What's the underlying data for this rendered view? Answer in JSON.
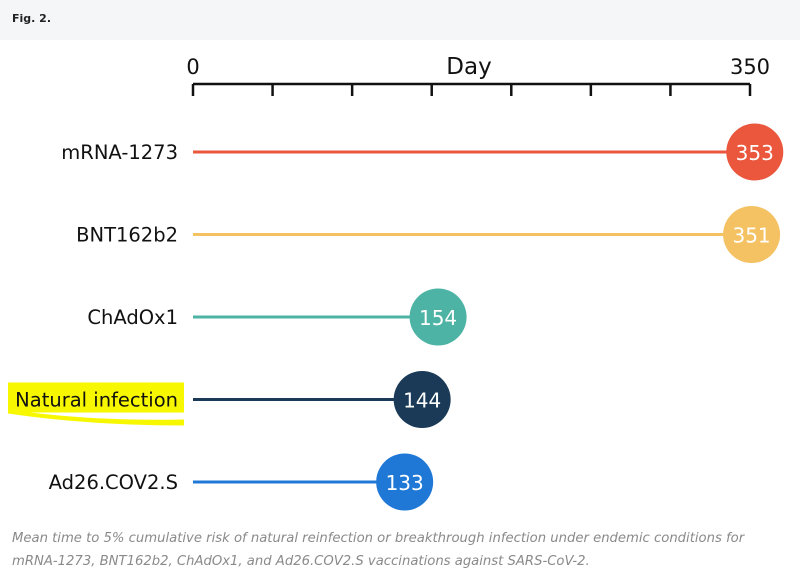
{
  "figure_label": "Fig. 2.",
  "caption": "Mean time to 5% cumulative risk of natural reinfection or breakthrough infection under endemic conditions for mRNA-1273, BNT162b2, ChAdOx1, and Ad26.COV2.S vaccinations against SARS-CoV-2.",
  "chart_data": {
    "type": "lollipop",
    "xlabel": "Day",
    "xlim": [
      0,
      350
    ],
    "x_tick_labels": [
      "0",
      "350"
    ],
    "x_ticks": [
      0,
      50,
      100,
      150,
      200,
      250,
      300,
      350
    ],
    "categories": [
      "mRNA-1273",
      "BNT162b2",
      "ChAdOx1",
      "Natural infection",
      "Ad26.COV2.S"
    ],
    "values": [
      353,
      351,
      154,
      144,
      133
    ],
    "value_labels": [
      "353",
      "351",
      "154",
      "144",
      "133"
    ],
    "colors": [
      "#ea573d",
      "#f4c262",
      "#4db3a4",
      "#1a3a57",
      "#1f78d6"
    ],
    "highlighted_category": "Natural infection",
    "highlight_color": "#f7f700"
  }
}
